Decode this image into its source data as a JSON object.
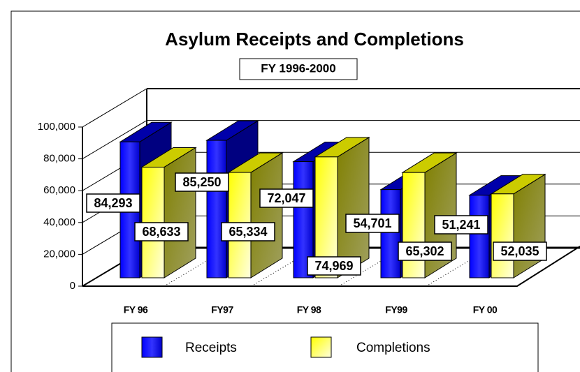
{
  "chart_data": {
    "type": "bar3d",
    "title": "Asylum  Receipts and Completions",
    "subtitle": "FY 1996-2000",
    "categories": [
      "FY 96",
      "FY97",
      "FY 98",
      "FY99",
      "FY 00"
    ],
    "series": [
      {
        "name": "Receipts",
        "color": "#0000ff",
        "values": [
          84293,
          85250,
          72047,
          54701,
          51241
        ],
        "value_labels": [
          "84,293",
          "85,250",
          "72,047",
          "54,701",
          "51,241"
        ]
      },
      {
        "name": "Completions",
        "color": "#ffff00",
        "values": [
          68633,
          65334,
          74969,
          65302,
          52035
        ],
        "value_labels": [
          "68,633",
          "65,334",
          "74,969",
          "65,302",
          "52,035"
        ]
      }
    ],
    "ylim": [
      0,
      100000
    ],
    "yticks": [
      0,
      {
        "value": 20000,
        "label": "20,000"
      },
      {
        "value": 40000,
        "label": "40,000"
      },
      {
        "value": 60000,
        "label": "60,000"
      },
      {
        "value": 80000,
        "label": "80,000"
      },
      {
        "value": 100000,
        "label": "100,000"
      }
    ],
    "grid": true
  }
}
